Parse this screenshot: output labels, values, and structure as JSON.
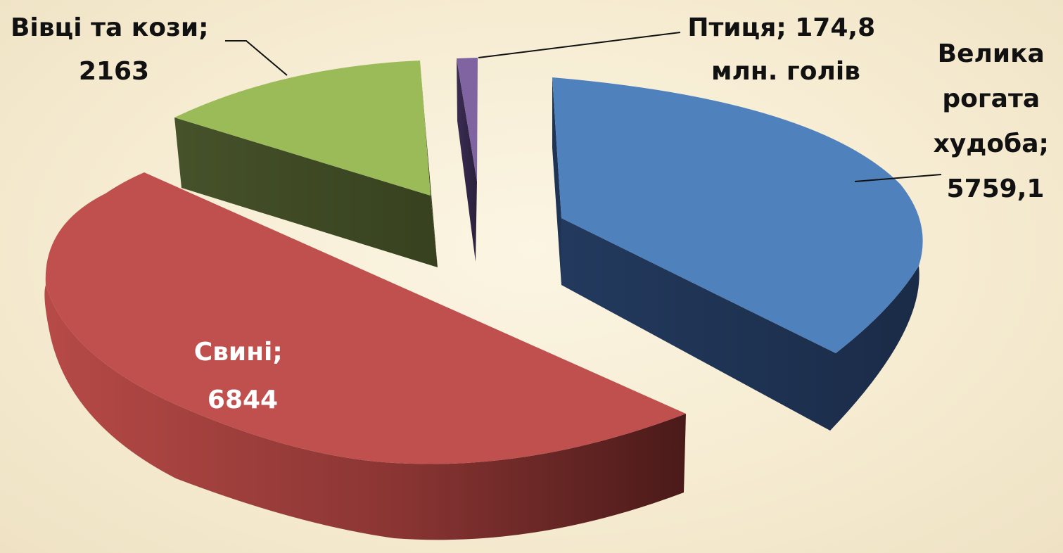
{
  "chart_data": {
    "type": "pie",
    "variant": "3d-exploded",
    "title": "",
    "slices": [
      {
        "key": "cattle",
        "label_lines": [
          "Велика",
          "рогата",
          "худоба;",
          "5759,1"
        ],
        "value": 5759.1,
        "color": "#4f81bd",
        "side_color": "#1f3354"
      },
      {
        "key": "pigs",
        "label_lines": [
          "Свині;",
          "6844"
        ],
        "value": 6844,
        "color": "#c0504d",
        "side_color": "#7a2d2b"
      },
      {
        "key": "sheep_goats",
        "label_lines": [
          "Вівці та кози;",
          "2163"
        ],
        "value": 2163,
        "color": "#9bbb59",
        "side_color": "#3f4a22"
      },
      {
        "key": "poultry",
        "label_lines": [
          "Птиця; 174,8",
          "млн. голів"
        ],
        "value": 174.8,
        "color": "#8064a2",
        "side_color": "#2e2342"
      }
    ],
    "legend": "none",
    "data_labels": "category; value"
  }
}
